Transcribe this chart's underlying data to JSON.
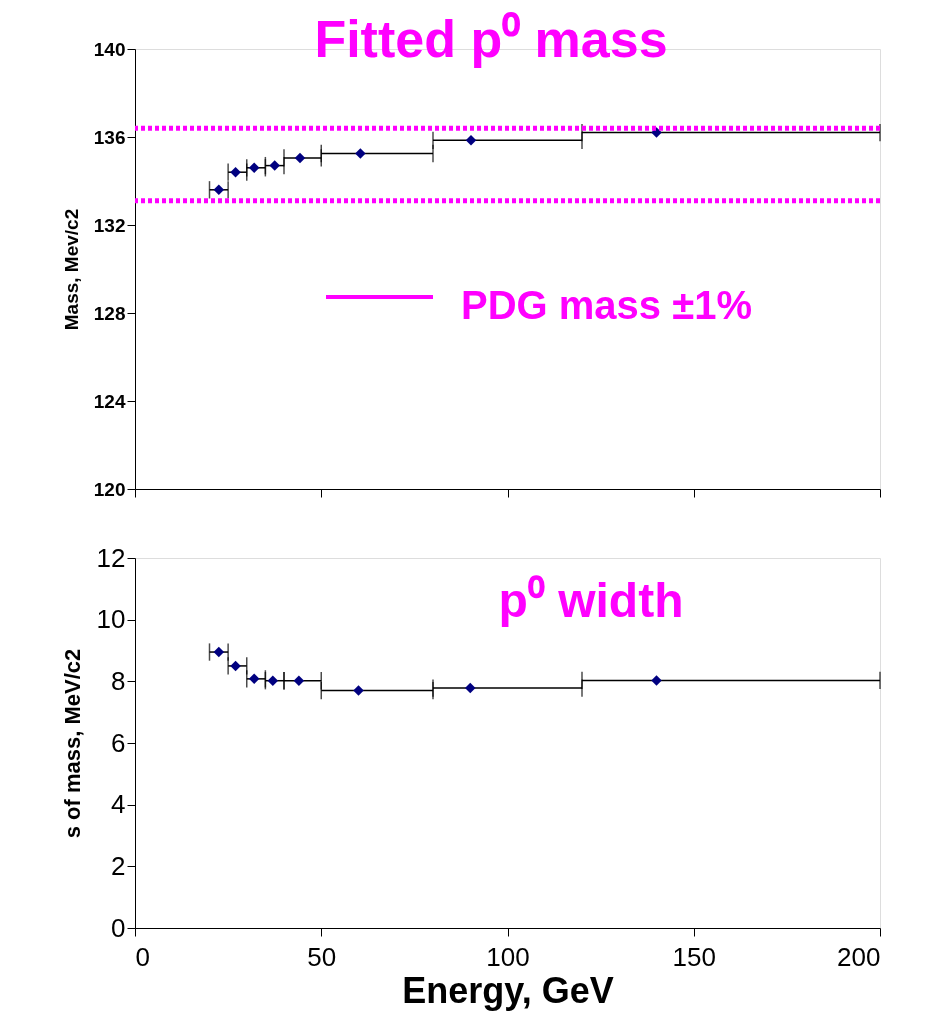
{
  "chart_data": [
    {
      "type": "scatter",
      "title": "Fitted p⁰ mass",
      "ylabel": "Mass, Mev/c2",
      "marker": "diamond",
      "grid": false,
      "legend": "right",
      "tick_labels": "y",
      "x": [
        22.5,
        27,
        32,
        37.5,
        44.3,
        60.5,
        90.2,
        140
      ],
      "series": [
        {
          "color": "#000080",
          "values": [
            133.6,
            134.4,
            134.6,
            134.7,
            135.05,
            135.25,
            135.85,
            136.2
          ],
          "xerrors": [
            [
              20,
              25
            ],
            [
              25,
              30
            ],
            [
              30,
              35
            ],
            [
              35,
              40
            ],
            [
              40,
              50
            ],
            [
              50,
              80
            ],
            [
              80,
              120
            ],
            [
              120,
              200
            ]
          ]
        }
      ],
      "xlim": [
        0,
        200
      ],
      "xticks": [
        0,
        50,
        100,
        150,
        200
      ],
      "ylim": [
        120,
        140
      ],
      "yticks": [
        120,
        124,
        128,
        132,
        136,
        140
      ],
      "ref_lines": [
        {
          "axis": "y",
          "value": 136.4,
          "label": "PDG mass ±1%",
          "color": "#ff00ff",
          "line_style": "dotted"
        },
        {
          "axis": "y",
          "value": 133.1,
          "color": "#ff00ff",
          "line_style": "dotted"
        }
      ]
    },
    {
      "type": "scatter",
      "title": "p⁰ width",
      "xlabel": "Energy, GeV",
      "ylabel": "s of mass, MeV/c2",
      "marker": "diamond",
      "grid": false,
      "x": [
        22.5,
        27,
        32,
        37,
        44,
        60,
        90,
        140
      ],
      "series": [
        {
          "color": "#000080",
          "values": [
            8.95,
            8.5,
            8.08,
            8.02,
            8.02,
            7.7,
            7.78,
            8.03
          ],
          "xerrors": [
            [
              20,
              25
            ],
            [
              25,
              30
            ],
            [
              30,
              35
            ],
            [
              35,
              40
            ],
            [
              40,
              50
            ],
            [
              50,
              80
            ],
            [
              80,
              120
            ],
            [
              120,
              200
            ]
          ]
        }
      ],
      "xlim": [
        0,
        200
      ],
      "xticks": [
        0,
        50,
        100,
        150,
        200
      ],
      "ylim": [
        0,
        12
      ],
      "yticks": [
        0,
        2,
        4,
        6,
        8,
        10,
        12
      ]
    }
  ]
}
